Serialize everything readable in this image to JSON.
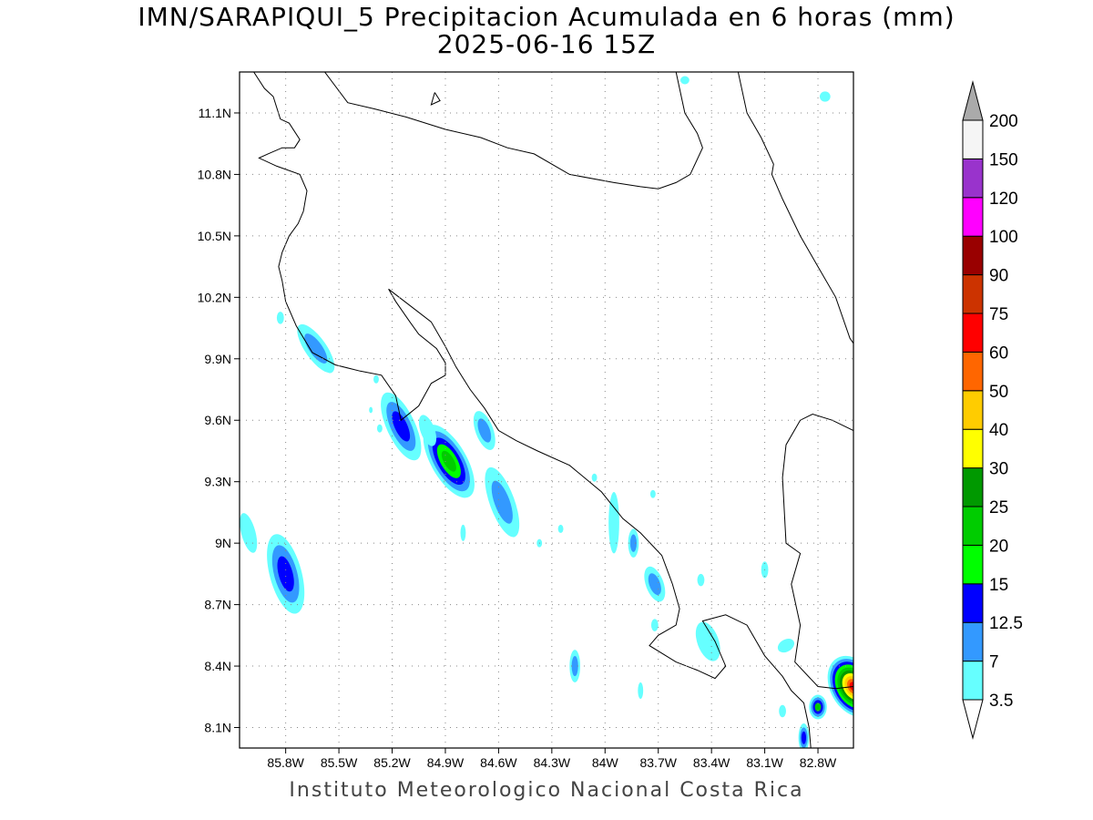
{
  "map": {
    "title": "IMN/SARAPIQUI_5 Precipitacion Acumulada en 6 horas (mm)",
    "subtitle": "2025-06-16 15Z",
    "credit": "Instituto Meteorologico Nacional Costa Rica",
    "extent": {
      "lon_min": -86.06,
      "lon_max": -82.6,
      "lat_min": 8.0,
      "lat_max": 11.3
    },
    "lat_ticks": [
      {
        "value": 11.1,
        "label": "11.1N"
      },
      {
        "value": 10.8,
        "label": "10.8N"
      },
      {
        "value": 10.5,
        "label": "10.5N"
      },
      {
        "value": 10.2,
        "label": "10.2N"
      },
      {
        "value": 9.9,
        "label": "9.9N"
      },
      {
        "value": 9.6,
        "label": "9.6N"
      },
      {
        "value": 9.3,
        "label": "9.3N"
      },
      {
        "value": 9.0,
        "label": "9N"
      },
      {
        "value": 8.7,
        "label": "8.7N"
      },
      {
        "value": 8.4,
        "label": "8.4N"
      },
      {
        "value": 8.1,
        "label": "8.1N"
      }
    ],
    "lon_ticks": [
      {
        "value": -85.8,
        "label": "85.8W"
      },
      {
        "value": -85.5,
        "label": "85.5W"
      },
      {
        "value": -85.2,
        "label": "85.2W"
      },
      {
        "value": -84.9,
        "label": "84.9W"
      },
      {
        "value": -84.6,
        "label": "84.6W"
      },
      {
        "value": -84.3,
        "label": "84.3W"
      },
      {
        "value": -84.0,
        "label": "84W"
      },
      {
        "value": -83.7,
        "label": "83.7W"
      },
      {
        "value": -83.4,
        "label": "83.4W"
      },
      {
        "value": -83.1,
        "label": "83.1W"
      },
      {
        "value": -82.8,
        "label": "82.8W"
      }
    ],
    "grid": true,
    "coastlines": [
      [
        [
          -85.98,
          11.3
        ],
        [
          -85.92,
          11.22
        ],
        [
          -85.87,
          11.18
        ],
        [
          -85.83,
          11.07
        ],
        [
          -85.78,
          11.05
        ],
        [
          -85.72,
          10.97
        ],
        [
          -85.75,
          10.93
        ],
        [
          -85.82,
          10.93
        ],
        [
          -85.9,
          10.9
        ],
        [
          -85.95,
          10.88
        ],
        [
          -85.85,
          10.84
        ],
        [
          -85.72,
          10.8
        ],
        [
          -85.68,
          10.72
        ],
        [
          -85.7,
          10.62
        ],
        [
          -85.73,
          10.56
        ],
        [
          -85.78,
          10.5
        ],
        [
          -85.82,
          10.42
        ],
        [
          -85.84,
          10.35
        ],
        [
          -85.82,
          10.28
        ],
        [
          -85.8,
          10.18
        ],
        [
          -85.74,
          10.06
        ],
        [
          -85.65,
          9.93
        ],
        [
          -85.52,
          9.87
        ],
        [
          -85.38,
          9.84
        ],
        [
          -85.26,
          9.82
        ],
        [
          -85.18,
          9.72
        ],
        [
          -85.15,
          9.6
        ],
        [
          -85.05,
          9.67
        ],
        [
          -84.98,
          9.78
        ],
        [
          -84.9,
          9.82
        ],
        [
          -84.9,
          9.88
        ],
        [
          -84.95,
          9.95
        ],
        [
          -85.05,
          10.02
        ],
        [
          -85.1,
          10.08
        ],
        [
          -85.18,
          10.18
        ],
        [
          -85.22,
          10.24
        ],
        [
          -85.1,
          10.16
        ],
        [
          -84.98,
          10.08
        ],
        [
          -84.9,
          9.96
        ],
        [
          -84.84,
          9.86
        ],
        [
          -84.76,
          9.75
        ],
        [
          -84.68,
          9.66
        ],
        [
          -84.6,
          9.55
        ],
        [
          -84.5,
          9.5
        ],
        [
          -84.38,
          9.45
        ],
        [
          -84.2,
          9.38
        ],
        [
          -84.02,
          9.25
        ],
        [
          -83.9,
          9.12
        ],
        [
          -83.8,
          9.05
        ],
        [
          -83.68,
          8.94
        ],
        [
          -83.62,
          8.8
        ],
        [
          -83.58,
          8.68
        ],
        [
          -83.6,
          8.6
        ],
        [
          -83.7,
          8.55
        ],
        [
          -83.75,
          8.5
        ],
        [
          -83.6,
          8.42
        ],
        [
          -83.48,
          8.38
        ],
        [
          -83.38,
          8.34
        ],
        [
          -83.32,
          8.4
        ],
        [
          -83.38,
          8.52
        ],
        [
          -83.45,
          8.62
        ],
        [
          -83.32,
          8.65
        ],
        [
          -83.2,
          8.6
        ],
        [
          -83.1,
          8.45
        ],
        [
          -83.0,
          8.35
        ],
        [
          -82.95,
          8.28
        ],
        [
          -82.88,
          8.22
        ],
        [
          -82.85,
          8.1
        ],
        [
          -82.84,
          8.0
        ]
      ],
      [
        [
          -83.25,
          11.3
        ],
        [
          -83.2,
          11.1
        ],
        [
          -83.12,
          10.98
        ],
        [
          -83.05,
          10.85
        ],
        [
          -83.06,
          10.8
        ],
        [
          -83.0,
          10.68
        ],
        [
          -82.9,
          10.5
        ],
        [
          -82.8,
          10.35
        ],
        [
          -82.7,
          10.2
        ],
        [
          -82.62,
          10.0
        ],
        [
          -82.58,
          9.95
        ]
      ],
      [
        [
          -85.58,
          11.3
        ],
        [
          -85.45,
          11.15
        ],
        [
          -85.3,
          11.12
        ],
        [
          -85.12,
          11.08
        ],
        [
          -84.9,
          11.02
        ],
        [
          -84.7,
          10.98
        ],
        [
          -84.55,
          10.93
        ],
        [
          -84.4,
          10.9
        ],
        [
          -84.2,
          10.8
        ],
        [
          -83.95,
          10.76
        ],
        [
          -83.8,
          10.74
        ],
        [
          -83.7,
          10.73
        ],
        [
          -83.6,
          10.76
        ],
        [
          -83.52,
          10.8
        ],
        [
          -83.45,
          10.93
        ],
        [
          -83.48,
          11.0
        ],
        [
          -83.55,
          11.1
        ],
        [
          -83.6,
          11.3
        ]
      ],
      [
        [
          -84.96,
          11.2
        ],
        [
          -84.93,
          11.16
        ],
        [
          -84.98,
          11.14
        ],
        [
          -84.96,
          11.2
        ]
      ],
      [
        [
          -82.6,
          9.55
        ],
        [
          -82.72,
          9.6
        ],
        [
          -82.83,
          9.63
        ],
        [
          -82.9,
          9.6
        ],
        [
          -82.98,
          9.48
        ],
        [
          -83.0,
          9.32
        ],
        [
          -82.98,
          9.0
        ],
        [
          -82.9,
          8.95
        ],
        [
          -82.95,
          8.8
        ],
        [
          -82.9,
          8.6
        ],
        [
          -82.93,
          8.42
        ],
        [
          -82.8,
          8.3
        ],
        [
          -82.7,
          8.29
        ],
        [
          -82.6,
          8.3
        ]
      ]
    ],
    "rain_cells": [
      {
        "lon": -85.63,
        "lat": 9.95,
        "rx": 0.06,
        "ry": 0.14,
        "rot": -35,
        "levels": [
          3.5,
          7
        ]
      },
      {
        "lon": -85.83,
        "lat": 10.1,
        "rx": 0.02,
        "ry": 0.03,
        "rot": 0,
        "levels": [
          3.5
        ]
      },
      {
        "lon": -85.55,
        "lat": 9.86,
        "rx": 0.025,
        "ry": 0.03,
        "rot": 0,
        "levels": [
          3.5
        ]
      },
      {
        "lon": -85.15,
        "lat": 9.57,
        "rx": 0.08,
        "ry": 0.18,
        "rot": -25,
        "levels": [
          3.5,
          7,
          12.5
        ]
      },
      {
        "lon": -84.88,
        "lat": 9.4,
        "rx": 0.1,
        "ry": 0.2,
        "rot": -30,
        "levels": [
          3.5,
          7,
          12.5,
          15,
          20
        ]
      },
      {
        "lon": -84.58,
        "lat": 9.2,
        "rx": 0.07,
        "ry": 0.18,
        "rot": -20,
        "levels": [
          3.5,
          7
        ]
      },
      {
        "lon": -84.68,
        "lat": 9.55,
        "rx": 0.05,
        "ry": 0.1,
        "rot": -20,
        "levels": [
          3.5,
          7
        ]
      },
      {
        "lon": -85.0,
        "lat": 9.55,
        "rx": 0.04,
        "ry": 0.08,
        "rot": -20,
        "levels": [
          3.5
        ]
      },
      {
        "lon": -85.8,
        "lat": 8.85,
        "rx": 0.09,
        "ry": 0.2,
        "rot": -15,
        "levels": [
          3.5,
          7,
          12.5
        ]
      },
      {
        "lon": -86.01,
        "lat": 9.05,
        "rx": 0.04,
        "ry": 0.1,
        "rot": -15,
        "levels": [
          3.5
        ]
      },
      {
        "lon": -83.72,
        "lat": 8.8,
        "rx": 0.05,
        "ry": 0.09,
        "rot": -20,
        "levels": [
          3.5,
          7
        ]
      },
      {
        "lon": -83.95,
        "lat": 9.1,
        "rx": 0.03,
        "ry": 0.15,
        "rot": 0,
        "levels": [
          3.5
        ]
      },
      {
        "lon": -83.84,
        "lat": 9.0,
        "rx": 0.03,
        "ry": 0.07,
        "rot": 0,
        "levels": [
          3.5,
          7
        ]
      },
      {
        "lon": -84.17,
        "lat": 8.4,
        "rx": 0.03,
        "ry": 0.08,
        "rot": 0,
        "levels": [
          3.5,
          7
        ]
      },
      {
        "lon": -83.42,
        "lat": 8.52,
        "rx": 0.06,
        "ry": 0.1,
        "rot": -20,
        "levels": [
          3.5
        ]
      },
      {
        "lon": -82.8,
        "lat": 8.2,
        "rx": 0.05,
        "ry": 0.06,
        "rot": 0,
        "levels": [
          3.5,
          7,
          12.5,
          20
        ]
      },
      {
        "lon": -82.88,
        "lat": 8.05,
        "rx": 0.03,
        "ry": 0.07,
        "rot": 0,
        "levels": [
          3.5,
          7,
          12.5
        ]
      },
      {
        "lon": -82.6,
        "lat": 8.3,
        "rx": 0.13,
        "ry": 0.16,
        "rot": -30,
        "levels": [
          3.5,
          7,
          12.5,
          15,
          20,
          25,
          30,
          40,
          50,
          60
        ]
      },
      {
        "lon": -83.55,
        "lat": 11.26,
        "rx": 0.025,
        "ry": 0.02,
        "rot": 0,
        "levels": [
          3.5
        ]
      },
      {
        "lon": -82.76,
        "lat": 11.18,
        "rx": 0.03,
        "ry": 0.025,
        "rot": 0,
        "levels": [
          3.5
        ]
      },
      {
        "lon": -84.25,
        "lat": 9.07,
        "rx": 0.015,
        "ry": 0.02,
        "rot": 0,
        "levels": [
          3.5
        ]
      },
      {
        "lon": -84.37,
        "lat": 9.0,
        "rx": 0.015,
        "ry": 0.02,
        "rot": 0,
        "levels": [
          3.5
        ]
      },
      {
        "lon": -84.8,
        "lat": 9.05,
        "rx": 0.015,
        "ry": 0.04,
        "rot": 0,
        "levels": [
          3.5
        ]
      },
      {
        "lon": -83.1,
        "lat": 8.87,
        "rx": 0.02,
        "ry": 0.04,
        "rot": 0,
        "levels": [
          3.5
        ]
      },
      {
        "lon": -83.46,
        "lat": 8.82,
        "rx": 0.02,
        "ry": 0.03,
        "rot": 0,
        "levels": [
          3.5
        ]
      },
      {
        "lon": -82.98,
        "lat": 8.5,
        "rx": 0.05,
        "ry": 0.03,
        "rot": -30,
        "levels": [
          3.5
        ]
      },
      {
        "lon": -83.8,
        "lat": 8.28,
        "rx": 0.015,
        "ry": 0.04,
        "rot": 0,
        "levels": [
          3.5
        ]
      },
      {
        "lon": -84.06,
        "lat": 9.32,
        "rx": 0.015,
        "ry": 0.02,
        "rot": 0,
        "levels": [
          3.5
        ]
      },
      {
        "lon": -83.73,
        "lat": 9.24,
        "rx": 0.015,
        "ry": 0.02,
        "rot": 0,
        "levels": [
          3.5
        ]
      },
      {
        "lon": -85.29,
        "lat": 9.8,
        "rx": 0.015,
        "ry": 0.02,
        "rot": 0,
        "levels": [
          3.5
        ]
      },
      {
        "lon": -85.27,
        "lat": 9.56,
        "rx": 0.015,
        "ry": 0.02,
        "rot": 0,
        "levels": [
          3.5
        ]
      },
      {
        "lon": -85.32,
        "lat": 9.65,
        "rx": 0.01,
        "ry": 0.015,
        "rot": 0,
        "levels": [
          3.5
        ]
      },
      {
        "lon": -83.72,
        "lat": 8.6,
        "rx": 0.02,
        "ry": 0.03,
        "rot": 0,
        "levels": [
          3.5
        ]
      },
      {
        "lon": -83.0,
        "lat": 8.18,
        "rx": 0.02,
        "ry": 0.03,
        "rot": 0,
        "levels": [
          3.5
        ]
      }
    ]
  },
  "colorbar": {
    "levels": [
      {
        "value": "3.5",
        "color": "#66ffff"
      },
      {
        "value": "7",
        "color": "#3399ff"
      },
      {
        "value": "12.5",
        "color": "#0000ff"
      },
      {
        "value": "15",
        "color": "#00ff00"
      },
      {
        "value": "20",
        "color": "#00cc00"
      },
      {
        "value": "25",
        "color": "#009900"
      },
      {
        "value": "30",
        "color": "#ffff00"
      },
      {
        "value": "40",
        "color": "#ffcc00"
      },
      {
        "value": "50",
        "color": "#ff6600"
      },
      {
        "value": "60",
        "color": "#ff0000"
      },
      {
        "value": "75",
        "color": "#cc3300"
      },
      {
        "value": "90",
        "color": "#990000"
      },
      {
        "value": "100",
        "color": "#ff00ff"
      },
      {
        "value": "120",
        "color": "#9933cc"
      },
      {
        "value": "150",
        "color": "#f5f5f5"
      },
      {
        "value": "200",
        "color": "#aaaaaa"
      }
    ],
    "below_color": "#ffffff",
    "above_color": "#aaaaaa"
  }
}
